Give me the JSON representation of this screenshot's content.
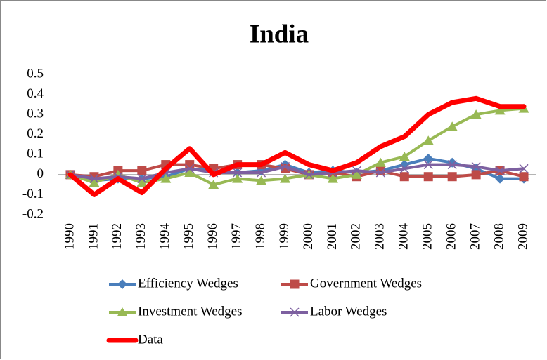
{
  "chart_data": {
    "type": "line",
    "title": "India",
    "categories": [
      "1990",
      "1991",
      "1992",
      "1993",
      "1994",
      "1995",
      "1996",
      "1997",
      "1998",
      "1999",
      "2000",
      "2001",
      "2002",
      "2003",
      "2004",
      "2005",
      "2006",
      "2007",
      "2008",
      "2009"
    ],
    "series": [
      {
        "name": "Efficiency Wedges",
        "color": "#4a7ebb",
        "marker": "diamond",
        "values": [
          0,
          -0.03,
          -0.02,
          -0.02,
          -0.01,
          0.03,
          0.02,
          0.01,
          0.02,
          0.05,
          0.01,
          0.02,
          0.01,
          0.02,
          0.05,
          0.08,
          0.06,
          0.03,
          -0.02,
          -0.02
        ]
      },
      {
        "name": "Government Wedges",
        "color": "#be4b48",
        "marker": "square",
        "values": [
          0,
          -0.01,
          0.02,
          0.02,
          0.05,
          0.05,
          0.03,
          0.05,
          0.05,
          0.03,
          0,
          0.01,
          -0.01,
          0.02,
          -0.01,
          -0.01,
          -0.01,
          0,
          0.02,
          -0.01
        ]
      },
      {
        "name": "Investment Wedges",
        "color": "#98b954",
        "marker": "triangle",
        "values": [
          0,
          -0.04,
          0,
          -0.04,
          -0.02,
          0.01,
          -0.05,
          -0.02,
          -0.03,
          -0.02,
          0,
          -0.02,
          0,
          0.06,
          0.09,
          0.17,
          0.24,
          0.3,
          0.32,
          0.33
        ]
      },
      {
        "name": "Labor Wedges",
        "color": "#7d60a0",
        "marker": "x",
        "values": [
          0,
          -0.02,
          -0.01,
          -0.02,
          0.01,
          0.03,
          0.01,
          0.01,
          0.01,
          0.04,
          0,
          0.01,
          0.02,
          0.01,
          0.03,
          0.05,
          0.05,
          0.04,
          0.02,
          0.03
        ]
      },
      {
        "name": "Data",
        "color": "#ff0000",
        "marker": "none",
        "values": [
          0,
          -0.1,
          -0.02,
          -0.09,
          0.03,
          0.13,
          0,
          0.05,
          0.05,
          0.11,
          0.05,
          0.02,
          0.06,
          0.14,
          0.19,
          0.3,
          0.36,
          0.38,
          0.34,
          0.34
        ]
      }
    ],
    "ylim": [
      -0.2,
      0.5
    ],
    "yticks": [
      -0.2,
      -0.1,
      0,
      0.1,
      0.2,
      0.3,
      0.4,
      0.5
    ],
    "grid": false,
    "legend": "bottom"
  }
}
